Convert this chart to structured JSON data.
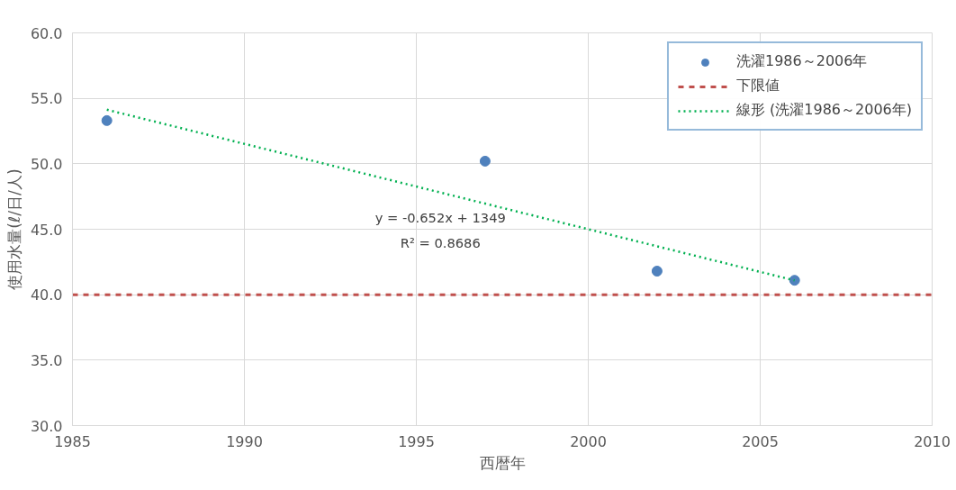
{
  "chart_data": {
    "type": "scatter",
    "xlabel": "西暦年",
    "ylabel": "使用水量(ℓ/日/人)",
    "x": [
      1986,
      1997,
      2002,
      2006
    ],
    "series": [
      {
        "name": "洗濯1986～2006年",
        "marker": "circle",
        "color": "#4f81bd",
        "values": [
          53.3,
          50.2,
          41.8,
          41.1
        ]
      },
      {
        "name": "線形 (洗濯1986～2006年)",
        "type": "line",
        "x": [
          1986,
          2006
        ],
        "color": "#00b050",
        "line_style": "dotted",
        "values": [
          54.13,
          41.09
        ]
      }
    ],
    "ref_lines": [
      {
        "axis": "y",
        "value": 40,
        "label": "下限値",
        "color": "#c0504d",
        "line_style": "dashed"
      }
    ],
    "annotations": [
      "y = -0.652x + 1349",
      "R² = 0.8686"
    ],
    "xlim": [
      1985,
      2010
    ],
    "xticks": [
      1985,
      1990,
      1995,
      2000,
      2005,
      2010
    ],
    "ylim": [
      30,
      60
    ],
    "yticks": [
      {
        "value": 30,
        "label": "30.0"
      },
      {
        "value": 35,
        "label": "35.0"
      },
      {
        "value": 40,
        "label": "40.0"
      },
      {
        "value": 45,
        "label": "45.0"
      },
      {
        "value": 50,
        "label": "50.0"
      },
      {
        "value": 55,
        "label": "55.0"
      },
      {
        "value": 60,
        "label": "60.0"
      }
    ],
    "grid": true,
    "legend": "top right"
  }
}
